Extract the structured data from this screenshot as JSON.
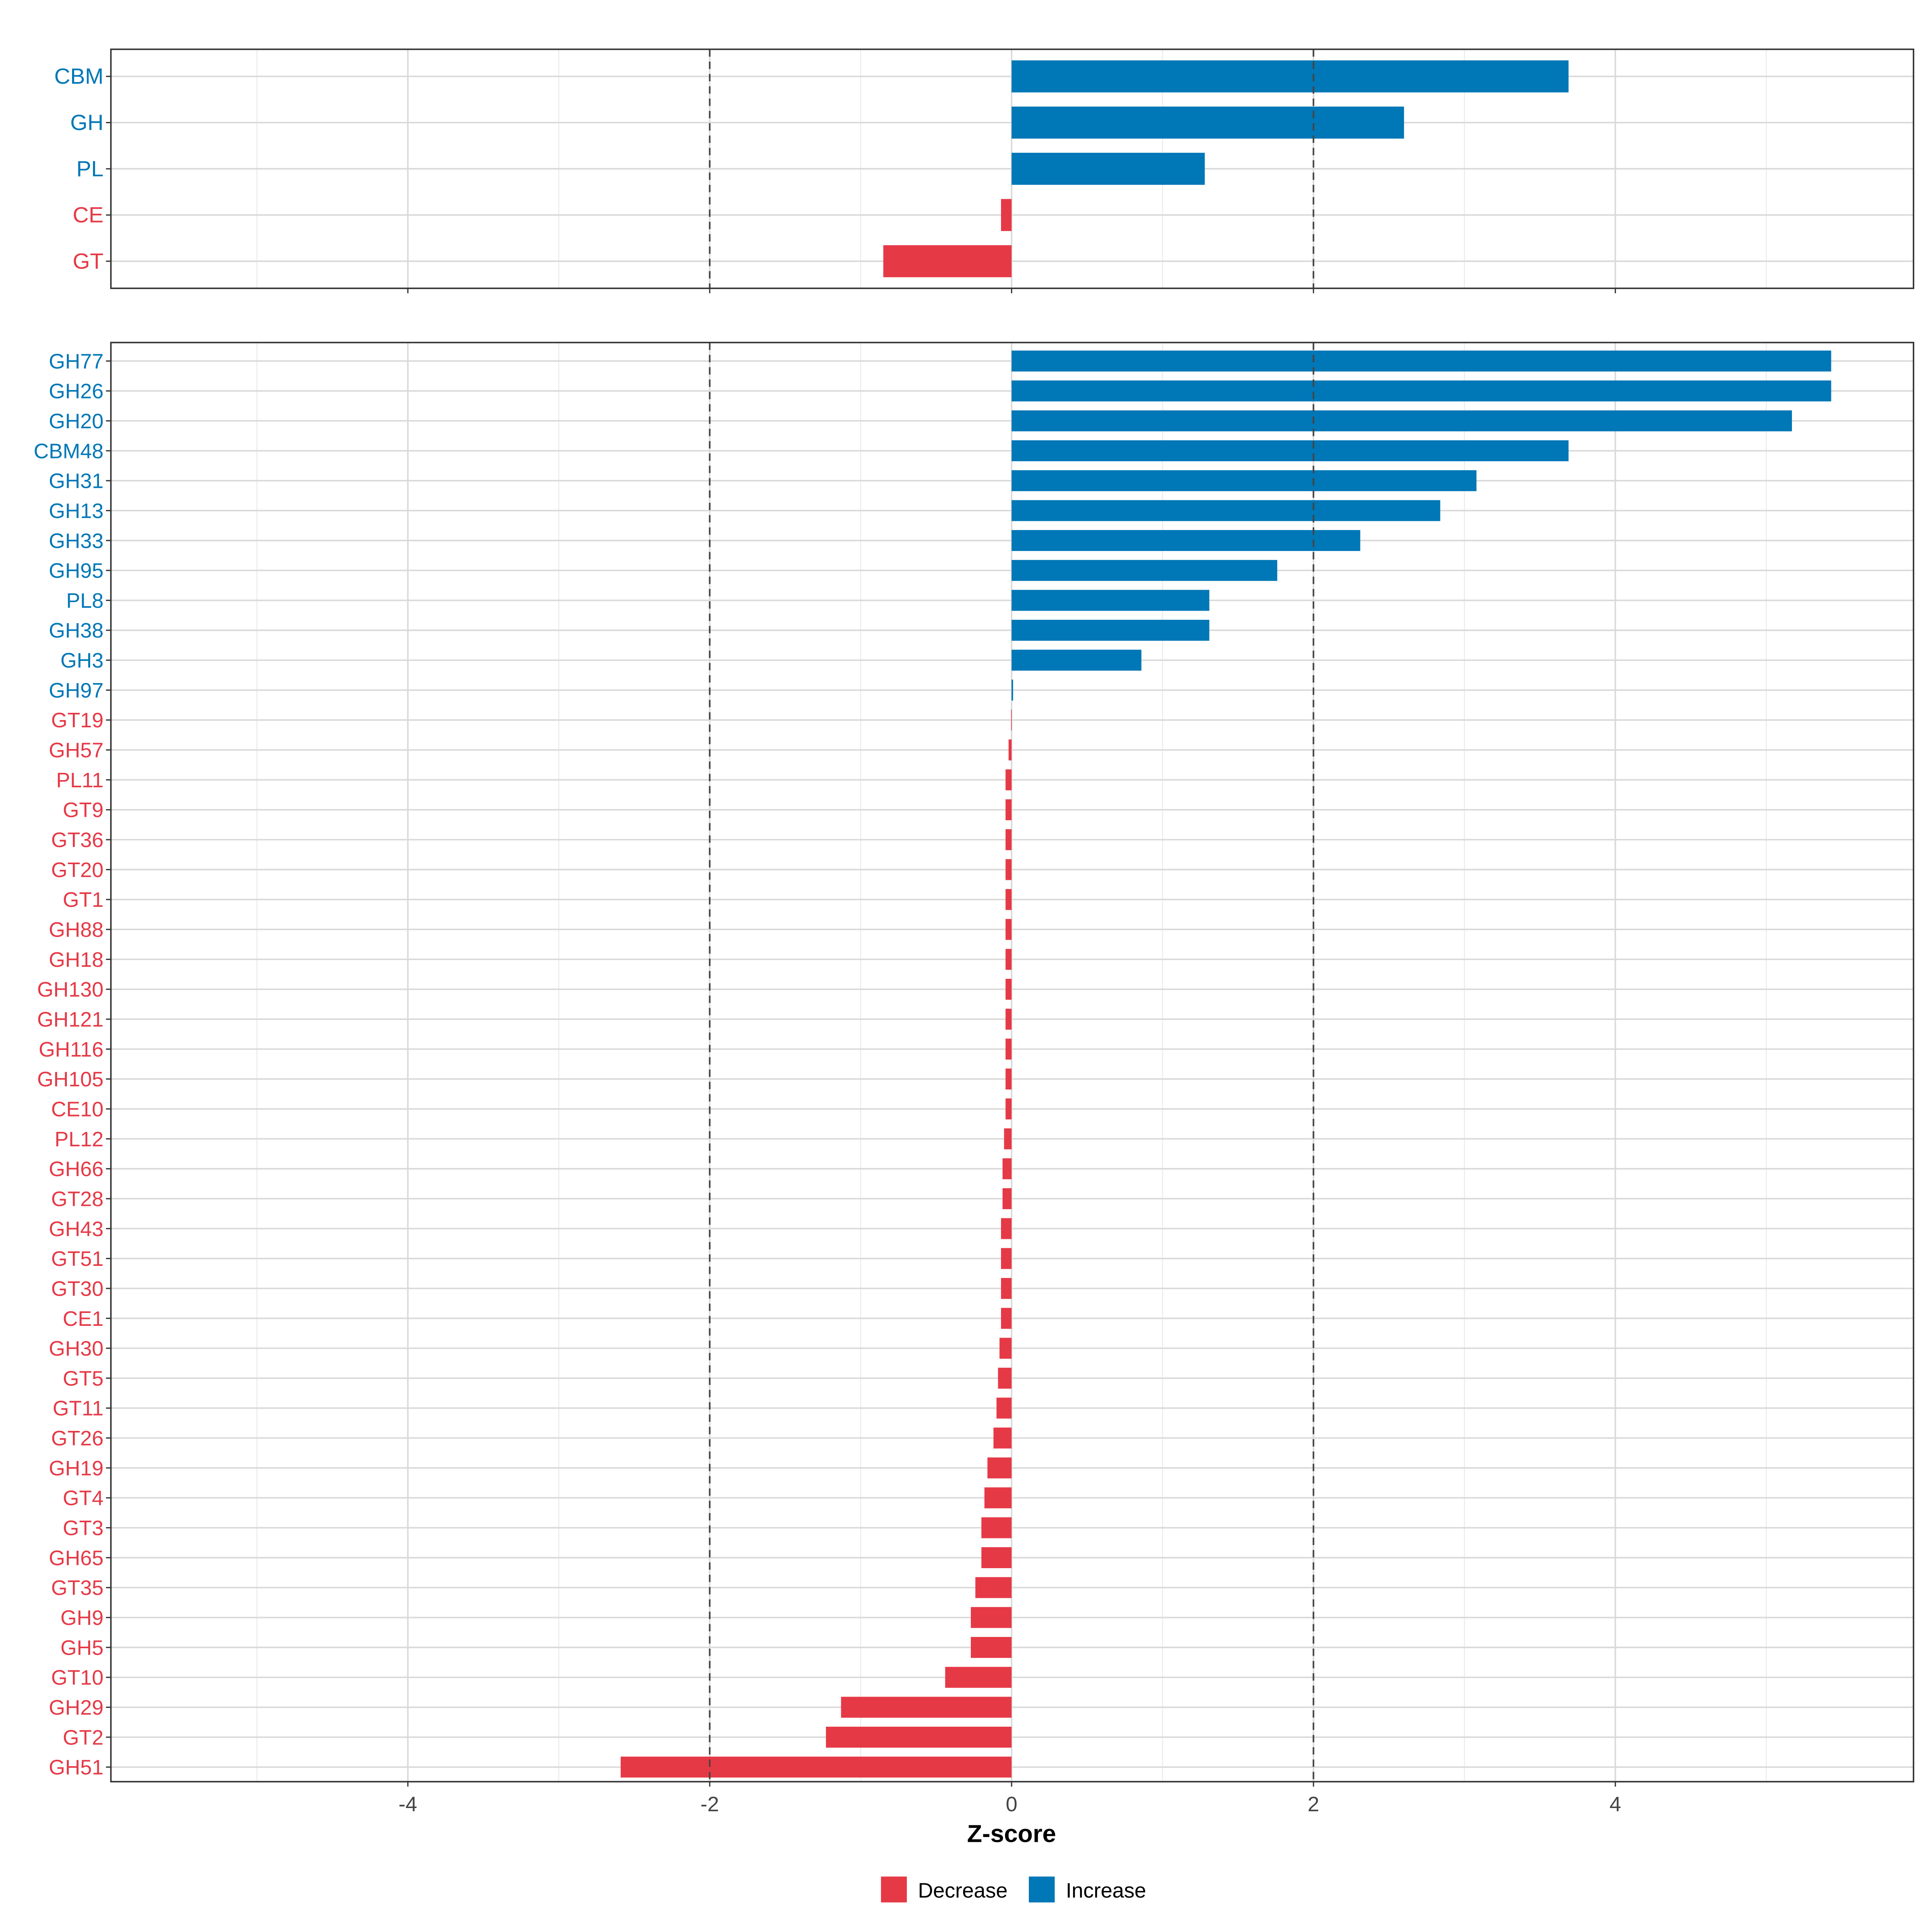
{
  "chart_data": [
    {
      "type": "bar",
      "orientation": "horizontal",
      "panel": "top",
      "categories": [
        "CBM",
        "GH",
        "PL",
        "CE",
        "GT"
      ],
      "values": [
        3.69,
        2.6,
        1.28,
        -0.07,
        -0.85
      ],
      "reference_lines": [
        -2,
        2
      ]
    },
    {
      "type": "bar",
      "orientation": "horizontal",
      "panel": "bottom",
      "categories": [
        "GH77",
        "GH26",
        "GH20",
        "CBM48",
        "GH31",
        "GH13",
        "GH33",
        "GH95",
        "PL8",
        "GH38",
        "GH3",
        "GH97",
        "GT19",
        "GH57",
        "PL11",
        "GT9",
        "GT36",
        "GT20",
        "GT1",
        "GH88",
        "GH18",
        "GH130",
        "GH121",
        "GH116",
        "GH105",
        "CE10",
        "PL12",
        "GH66",
        "GT28",
        "GH43",
        "GT51",
        "GT30",
        "CE1",
        "GH30",
        "GT5",
        "GT11",
        "GT26",
        "GH19",
        "GT4",
        "GT3",
        "GH65",
        "GT35",
        "GH9",
        "GH5",
        "GT10",
        "GH29",
        "GT2",
        "GH51"
      ],
      "values": [
        5.43,
        5.43,
        5.17,
        3.69,
        3.08,
        2.84,
        2.31,
        1.76,
        1.31,
        1.31,
        0.86,
        0.01,
        -0.003,
        -0.02,
        -0.04,
        -0.04,
        -0.04,
        -0.04,
        -0.04,
        -0.04,
        -0.04,
        -0.04,
        -0.04,
        -0.04,
        -0.04,
        -0.04,
        -0.05,
        -0.06,
        -0.06,
        -0.07,
        -0.07,
        -0.07,
        -0.07,
        -0.08,
        -0.09,
        -0.1,
        -0.12,
        -0.16,
        -0.18,
        -0.2,
        -0.2,
        -0.24,
        -0.27,
        -0.27,
        -0.44,
        -1.13,
        -1.23,
        -2.59
      ],
      "reference_lines": [
        -2,
        2
      ]
    }
  ],
  "axis": {
    "xlabel": "Z-score",
    "xlim": [
      -5.97,
      5.98
    ],
    "ticks": [
      -4,
      -2,
      0,
      2,
      4
    ],
    "tick_labels": [
      "-4",
      "-2",
      "0",
      "2",
      "4"
    ],
    "grid": true
  },
  "legend": {
    "placement": "bottom",
    "items": [
      {
        "label": "Decrease",
        "color": "#E63946"
      },
      {
        "label": "Increase",
        "color": "#0077B6"
      }
    ]
  },
  "colors": {
    "decrease": "#E63946",
    "increase": "#0077B6"
  }
}
